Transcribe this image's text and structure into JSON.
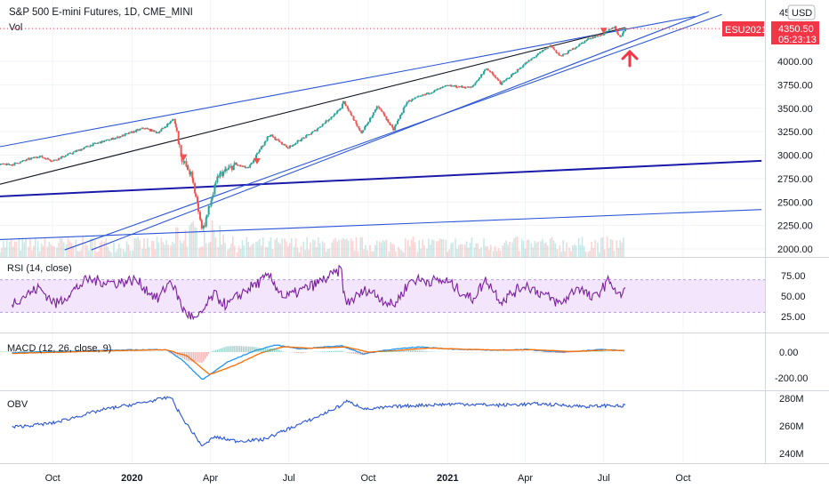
{
  "chart_data": {
    "type": "line",
    "title": "S&P 500 E-mini Futures, 1D, CME_MINI",
    "currency": "USD",
    "price_badge": {
      "symbol": "ESU2021",
      "price": "4350.50",
      "countdown": "05:23:13",
      "color": "#f23645"
    },
    "x_ticks": [
      {
        "label": "Oct",
        "bold": false
      },
      {
        "label": "2020",
        "bold": true
      },
      {
        "label": "Apr",
        "bold": false
      },
      {
        "label": "Jul",
        "bold": false
      },
      {
        "label": "Oct",
        "bold": false
      },
      {
        "label": "2021",
        "bold": true
      },
      {
        "label": "Apr",
        "bold": false
      },
      {
        "label": "Jul",
        "bold": false
      },
      {
        "label": "Oct",
        "bold": false
      }
    ],
    "panels": [
      {
        "name": "price",
        "series_label": "Vol",
        "y_ticks": [
          "4000.00",
          "3750.00",
          "3500.00",
          "3250.00",
          "3000.00",
          "2750.00",
          "2500.00",
          "2250.00",
          "2000.00"
        ],
        "top_tick": "45",
        "price_points": [
          [
            "2019-08-15",
            2900
          ],
          [
            "2019-09-15",
            2990
          ],
          [
            "2019-10-01",
            2940
          ],
          [
            "2019-10-20",
            3010
          ],
          [
            "2019-11-15",
            3110
          ],
          [
            "2019-12-15",
            3190
          ],
          [
            "2020-01-15",
            3290
          ],
          [
            "2020-01-31",
            3240
          ],
          [
            "2020-02-19",
            3390
          ],
          [
            "2020-02-28",
            2960
          ],
          [
            "2020-03-10",
            2780
          ],
          [
            "2020-03-23",
            2200
          ],
          [
            "2020-04-10",
            2780
          ],
          [
            "2020-04-30",
            2900
          ],
          [
            "2020-05-15",
            2860
          ],
          [
            "2020-06-08",
            3220
          ],
          [
            "2020-06-30",
            3080
          ],
          [
            "2020-07-31",
            3260
          ],
          [
            "2020-08-31",
            3500
          ],
          [
            "2020-09-02",
            3580
          ],
          [
            "2020-09-23",
            3230
          ],
          [
            "2020-10-12",
            3530
          ],
          [
            "2020-10-30",
            3270
          ],
          [
            "2020-11-15",
            3570
          ],
          [
            "2020-12-31",
            3740
          ],
          [
            "2021-01-29",
            3720
          ],
          [
            "2021-02-15",
            3930
          ],
          [
            "2021-03-04",
            3760
          ],
          [
            "2021-03-31",
            3970
          ],
          [
            "2021-04-30",
            4170
          ],
          [
            "2021-05-12",
            4050
          ],
          [
            "2021-06-15",
            4250
          ],
          [
            "2021-06-30",
            4290
          ],
          [
            "2021-07-14",
            4370
          ],
          [
            "2021-07-19",
            4250
          ],
          [
            "2021-07-26",
            4350
          ]
        ],
        "trendlines": [
          {
            "from": [
              "2019-08-01",
              3090
            ],
            "to": [
              "2021-10-15",
              4480
            ],
            "color": "#2a55d6"
          },
          {
            "from": [
              "2019-08-01",
              2690
            ],
            "to": [
              "2021-07-26",
              4360
            ],
            "color": "#131722"
          },
          {
            "from": [
              "2019-08-01",
              2560
            ],
            "to": [
              "2021-12-31",
              2940
            ],
            "color": "#1a1aa8"
          },
          {
            "from": [
              "2019-08-01",
              2100
            ],
            "to": [
              "2021-12-31",
              2420
            ],
            "color": "#2a55d6"
          },
          {
            "from": [
              "2019-10-15",
              1990
            ],
            "to": [
              "2021-11-15",
              4500
            ],
            "color": "#2a55d6"
          },
          {
            "from": [
              "2019-11-15",
              1990
            ],
            "to": [
              "2021-10-31",
              4530
            ],
            "color": "#2a55d6"
          }
        ]
      },
      {
        "name": "rsi",
        "series_label": "RSI (14, close)",
        "y_ticks": [
          "75.00",
          "50.00",
          "25.00"
        ],
        "bands": [
          30,
          70
        ],
        "points": [
          [
            "2019-08-15",
            42
          ],
          [
            "2019-09-15",
            60
          ],
          [
            "2019-10-05",
            40
          ],
          [
            "2019-11-10",
            70
          ],
          [
            "2019-12-15",
            66
          ],
          [
            "2020-01-05",
            70
          ],
          [
            "2020-01-31",
            46
          ],
          [
            "2020-02-15",
            70
          ],
          [
            "2020-03-01",
            32
          ],
          [
            "2020-03-16",
            20
          ],
          [
            "2020-04-05",
            52
          ],
          [
            "2020-04-20",
            38
          ],
          [
            "2020-05-10",
            56
          ],
          [
            "2020-06-08",
            74
          ],
          [
            "2020-06-26",
            48
          ],
          [
            "2020-07-31",
            64
          ],
          [
            "2020-08-31",
            82
          ],
          [
            "2020-09-04",
            40
          ],
          [
            "2020-09-30",
            58
          ],
          [
            "2020-10-30",
            38
          ],
          [
            "2020-11-20",
            70
          ],
          [
            "2020-12-31",
            68
          ],
          [
            "2021-01-29",
            46
          ],
          [
            "2021-02-15",
            70
          ],
          [
            "2021-03-04",
            44
          ],
          [
            "2021-04-01",
            64
          ],
          [
            "2021-05-12",
            40
          ],
          [
            "2021-06-01",
            62
          ],
          [
            "2021-06-18",
            46
          ],
          [
            "2021-07-08",
            70
          ],
          [
            "2021-07-19",
            48
          ],
          [
            "2021-07-26",
            60
          ]
        ]
      },
      {
        "name": "macd",
        "series_label": "MACD (12, 26, close, 9)",
        "y_ticks": [
          "0.00",
          "-200.00"
        ],
        "macd": [
          [
            "2019-08-15",
            -5
          ],
          [
            "2019-10-15",
            5
          ],
          [
            "2019-12-15",
            15
          ],
          [
            "2020-02-10",
            20
          ],
          [
            "2020-02-28",
            -60
          ],
          [
            "2020-03-23",
            -215
          ],
          [
            "2020-04-20",
            -80
          ],
          [
            "2020-05-20",
            5
          ],
          [
            "2020-06-15",
            55
          ],
          [
            "2020-07-15",
            25
          ],
          [
            "2020-08-31",
            50
          ],
          [
            "2020-09-25",
            -15
          ],
          [
            "2020-10-20",
            15
          ],
          [
            "2020-11-30",
            40
          ],
          [
            "2021-01-15",
            20
          ],
          [
            "2021-02-28",
            15
          ],
          [
            "2021-03-31",
            20
          ],
          [
            "2021-05-15",
            0
          ],
          [
            "2021-06-30",
            20
          ],
          [
            "2021-07-26",
            10
          ]
        ],
        "signal": [
          [
            "2019-08-15",
            -10
          ],
          [
            "2019-10-15",
            0
          ],
          [
            "2019-12-15",
            12
          ],
          [
            "2020-02-10",
            18
          ],
          [
            "2020-03-05",
            -30
          ],
          [
            "2020-03-31",
            -175
          ],
          [
            "2020-04-30",
            -100
          ],
          [
            "2020-05-30",
            -5
          ],
          [
            "2020-06-25",
            42
          ],
          [
            "2020-07-25",
            30
          ],
          [
            "2020-09-05",
            40
          ],
          [
            "2020-10-01",
            0
          ],
          [
            "2020-10-30",
            10
          ],
          [
            "2020-12-10",
            32
          ],
          [
            "2021-01-20",
            22
          ],
          [
            "2021-03-05",
            15
          ],
          [
            "2021-04-10",
            18
          ],
          [
            "2021-05-25",
            5
          ],
          [
            "2021-07-05",
            15
          ],
          [
            "2021-07-26",
            12
          ]
        ]
      },
      {
        "name": "obv",
        "series_label": "OBV",
        "y_ticks": [
          "280M",
          "260M",
          "240M"
        ],
        "points": [
          [
            "2019-08-15",
            259
          ],
          [
            "2019-10-01",
            262
          ],
          [
            "2019-11-30",
            272
          ],
          [
            "2020-01-15",
            277
          ],
          [
            "2020-02-15",
            281
          ],
          [
            "2020-02-28",
            266
          ],
          [
            "2020-03-15",
            252
          ],
          [
            "2020-03-23",
            245
          ],
          [
            "2020-04-05",
            252
          ],
          [
            "2020-05-01",
            249
          ],
          [
            "2020-06-01",
            250
          ],
          [
            "2020-07-01",
            258
          ],
          [
            "2020-08-01",
            266
          ],
          [
            "2020-08-31",
            275
          ],
          [
            "2020-09-05",
            278
          ],
          [
            "2020-09-30",
            272
          ],
          [
            "2020-11-01",
            274
          ],
          [
            "2020-12-01",
            275
          ],
          [
            "2021-01-15",
            276
          ],
          [
            "2021-02-28",
            275
          ],
          [
            "2021-04-15",
            276
          ],
          [
            "2021-05-15",
            275
          ],
          [
            "2021-06-15",
            274
          ],
          [
            "2021-07-10",
            275
          ],
          [
            "2021-07-20",
            274
          ],
          [
            "2021-07-26",
            275
          ]
        ]
      }
    ],
    "colors": {
      "candle_up": "#26a69a",
      "candle_down": "#ef5350",
      "rsi_line": "#7b1fa2",
      "rsi_band_fill": "#f3e5fb",
      "macd_line": "#2196f3",
      "signal_line": "#ff6d00",
      "obv_line": "#2a55d6",
      "arrow": "#f23645"
    }
  }
}
